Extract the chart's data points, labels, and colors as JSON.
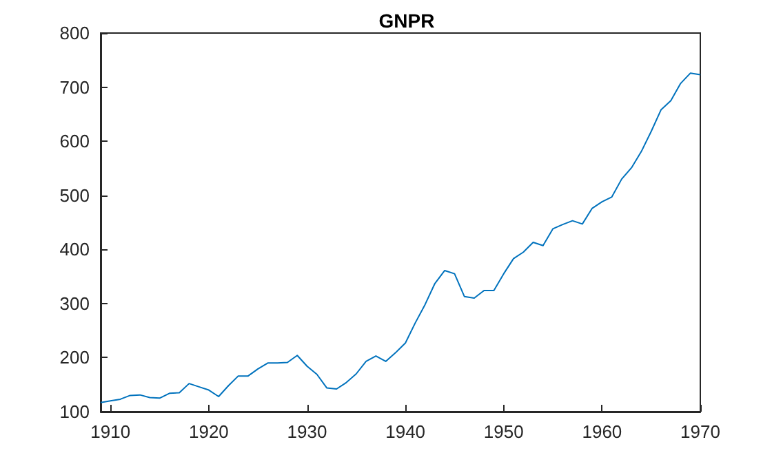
{
  "chart_data": {
    "type": "line",
    "title": "GNPR",
    "x": [
      1909,
      1910,
      1911,
      1912,
      1913,
      1914,
      1915,
      1916,
      1917,
      1918,
      1919,
      1920,
      1921,
      1922,
      1923,
      1924,
      1925,
      1926,
      1927,
      1928,
      1929,
      1930,
      1931,
      1932,
      1933,
      1934,
      1935,
      1936,
      1937,
      1938,
      1939,
      1940,
      1941,
      1942,
      1943,
      1944,
      1945,
      1946,
      1947,
      1948,
      1949,
      1950,
      1951,
      1952,
      1953,
      1954,
      1955,
      1956,
      1957,
      1958,
      1959,
      1960,
      1961,
      1962,
      1963,
      1964,
      1965,
      1966,
      1967,
      1968,
      1969,
      1970
    ],
    "series": [
      {
        "color": "#0072bd",
        "values": [
          117,
          120,
          123,
          130,
          131,
          126,
          125,
          134,
          135,
          152,
          146,
          140,
          128,
          148,
          166,
          166,
          179,
          190,
          190,
          191,
          204,
          184,
          169,
          144,
          142,
          154,
          170,
          193,
          203,
          193,
          209,
          227,
          264,
          298,
          337,
          361,
          355,
          313,
          310,
          324,
          324,
          355,
          383,
          395,
          413,
          407,
          438,
          446,
          453,
          447,
          476,
          488,
          497,
          530,
          551,
          581,
          618,
          658,
          675,
          707,
          726,
          723
        ]
      }
    ],
    "xlim": [
      1909,
      1970
    ],
    "xticks": [
      1910,
      1920,
      1930,
      1940,
      1950,
      1960,
      1970
    ],
    "ylim": [
      100,
      800
    ],
    "yticks": [
      100,
      200,
      300,
      400,
      500,
      600,
      700,
      800
    ],
    "grid": false,
    "marker": "none",
    "line_style": "solid"
  }
}
